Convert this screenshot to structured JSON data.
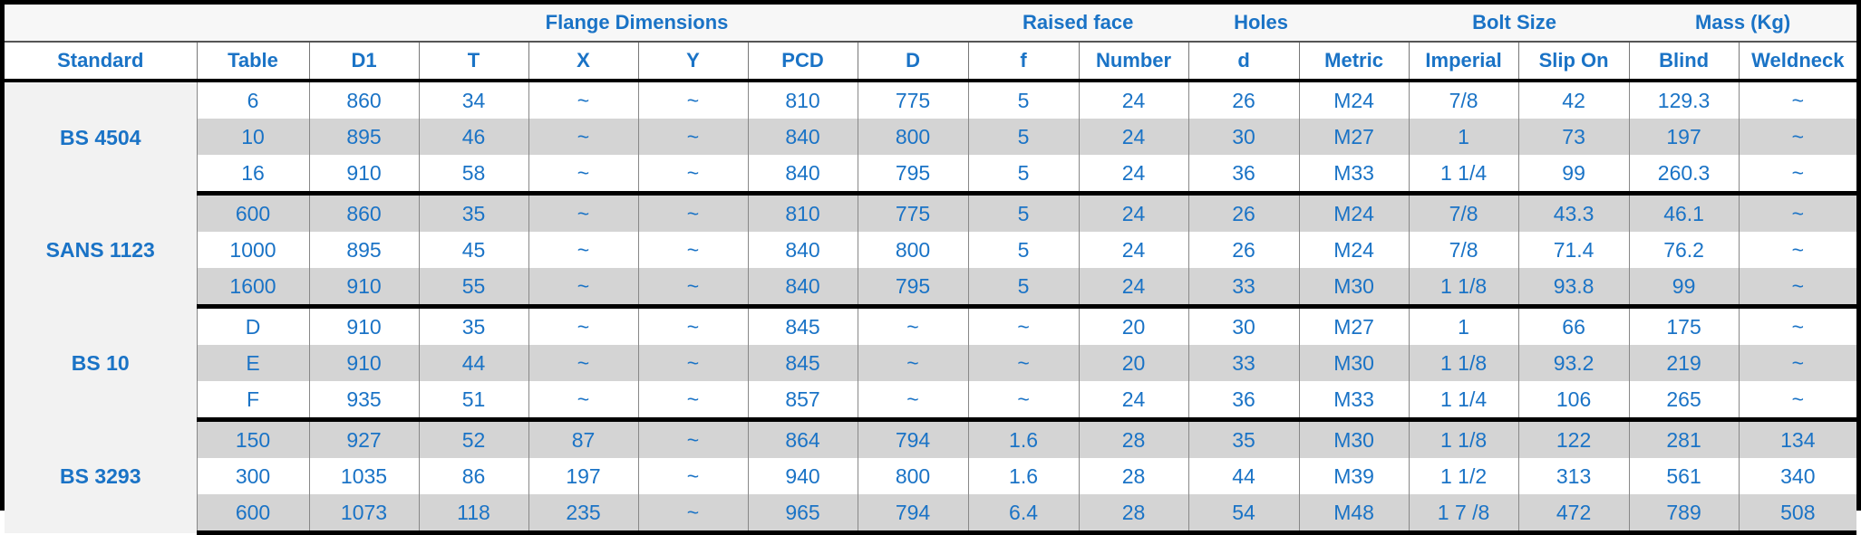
{
  "group_headers": {
    "flange": "Flange Dimensions",
    "raised": "Raised face",
    "holes": "Holes",
    "bolt": "Bolt Size",
    "mass": "Mass (Kg)"
  },
  "columns": [
    "Standard",
    "Table",
    "D1",
    "T",
    "X",
    "Y",
    "PCD",
    "D",
    "f",
    "Number",
    "d",
    "Metric",
    "Imperial",
    "Slip On",
    "Blind",
    "Weldneck"
  ],
  "groups": [
    {
      "standard": "BS 4504",
      "rows": [
        [
          "6",
          "860",
          "34",
          "~",
          "~",
          "810",
          "775",
          "5",
          "24",
          "26",
          "M24",
          "7/8",
          "42",
          "129.3",
          "~"
        ],
        [
          "10",
          "895",
          "46",
          "~",
          "~",
          "840",
          "800",
          "5",
          "24",
          "30",
          "M27",
          "1",
          "73",
          "197",
          "~"
        ],
        [
          "16",
          "910",
          "58",
          "~",
          "~",
          "840",
          "795",
          "5",
          "24",
          "36",
          "M33",
          "1 1/4",
          "99",
          "260.3",
          "~"
        ]
      ]
    },
    {
      "standard": "SANS 1123",
      "rows": [
        [
          "600",
          "860",
          "35",
          "~",
          "~",
          "810",
          "775",
          "5",
          "24",
          "26",
          "M24",
          "7/8",
          "43.3",
          "46.1",
          "~"
        ],
        [
          "1000",
          "895",
          "45",
          "~",
          "~",
          "840",
          "800",
          "5",
          "24",
          "26",
          "M24",
          "7/8",
          "71.4",
          "76.2",
          "~"
        ],
        [
          "1600",
          "910",
          "55",
          "~",
          "~",
          "840",
          "795",
          "5",
          "24",
          "33",
          "M30",
          "1 1/8",
          "93.8",
          "99",
          "~"
        ]
      ]
    },
    {
      "standard": "BS 10",
      "rows": [
        [
          "D",
          "910",
          "35",
          "~",
          "~",
          "845",
          "~",
          "~",
          "20",
          "30",
          "M27",
          "1",
          "66",
          "175",
          "~"
        ],
        [
          "E",
          "910",
          "44",
          "~",
          "~",
          "845",
          "~",
          "~",
          "20",
          "33",
          "M30",
          "1 1/8",
          "93.2",
          "219",
          "~"
        ],
        [
          "F",
          "935",
          "51",
          "~",
          "~",
          "857",
          "~",
          "~",
          "24",
          "36",
          "M33",
          "1 1/4",
          "106",
          "265",
          "~"
        ]
      ]
    },
    {
      "standard": "BS 3293",
      "rows": [
        [
          "150",
          "927",
          "52",
          "87",
          "~",
          "864",
          "794",
          "1.6",
          "28",
          "35",
          "M30",
          "1 1/8",
          "122",
          "281",
          "134"
        ],
        [
          "300",
          "1035",
          "86",
          "197",
          "~",
          "940",
          "800",
          "1.6",
          "28",
          "44",
          "M39",
          "1 1/2",
          "313",
          "561",
          "340"
        ],
        [
          "600",
          "1073",
          "118",
          "235",
          "~",
          "965",
          "794",
          "6.4",
          "28",
          "54",
          "M48",
          "1 7 /8",
          "472",
          "789",
          "508"
        ]
      ]
    }
  ],
  "colors": {
    "text": "#1a73c6",
    "shade": "#d4d4d4",
    "border": "#000000"
  }
}
